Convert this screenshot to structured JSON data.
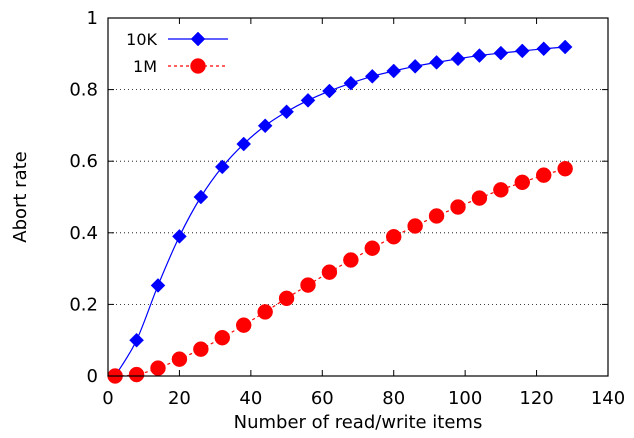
{
  "chart_data": {
    "type": "line",
    "xlabel": "Number of read/write items",
    "ylabel": "Abort rate",
    "xlim": [
      0,
      140
    ],
    "ylim": [
      0,
      1
    ],
    "x_ticks": [
      "0",
      "20",
      "40",
      "60",
      "80",
      "100",
      "120",
      "140"
    ],
    "y_ticks": [
      "0",
      "0.2",
      "0.4",
      "0.6",
      "0.8",
      "1"
    ],
    "grid": "horizontal dotted",
    "legend_position": "top-left",
    "x": [
      2,
      8,
      14,
      20,
      26,
      32,
      38,
      44,
      50,
      56,
      62,
      68,
      74,
      80,
      86,
      92,
      98,
      104,
      110,
      116,
      122,
      128
    ],
    "series": [
      {
        "name": "10K",
        "color": "#0000ff",
        "marker": "diamond",
        "line": "solid",
        "values": [
          0.0,
          0.1,
          0.253,
          0.39,
          0.5,
          0.584,
          0.648,
          0.699,
          0.738,
          0.77,
          0.796,
          0.818,
          0.837,
          0.852,
          0.865,
          0.876,
          0.886,
          0.895,
          0.902,
          0.908,
          0.914,
          0.919
        ]
      },
      {
        "name": "1M",
        "color": "#ff0000",
        "marker": "circle",
        "line": "dashed",
        "values": [
          0.0,
          0.004,
          0.022,
          0.047,
          0.075,
          0.107,
          0.142,
          0.179,
          0.217,
          0.254,
          0.29,
          0.324,
          0.357,
          0.389,
          0.419,
          0.447,
          0.472,
          0.497,
          0.52,
          0.541,
          0.561,
          0.579
        ]
      }
    ]
  }
}
